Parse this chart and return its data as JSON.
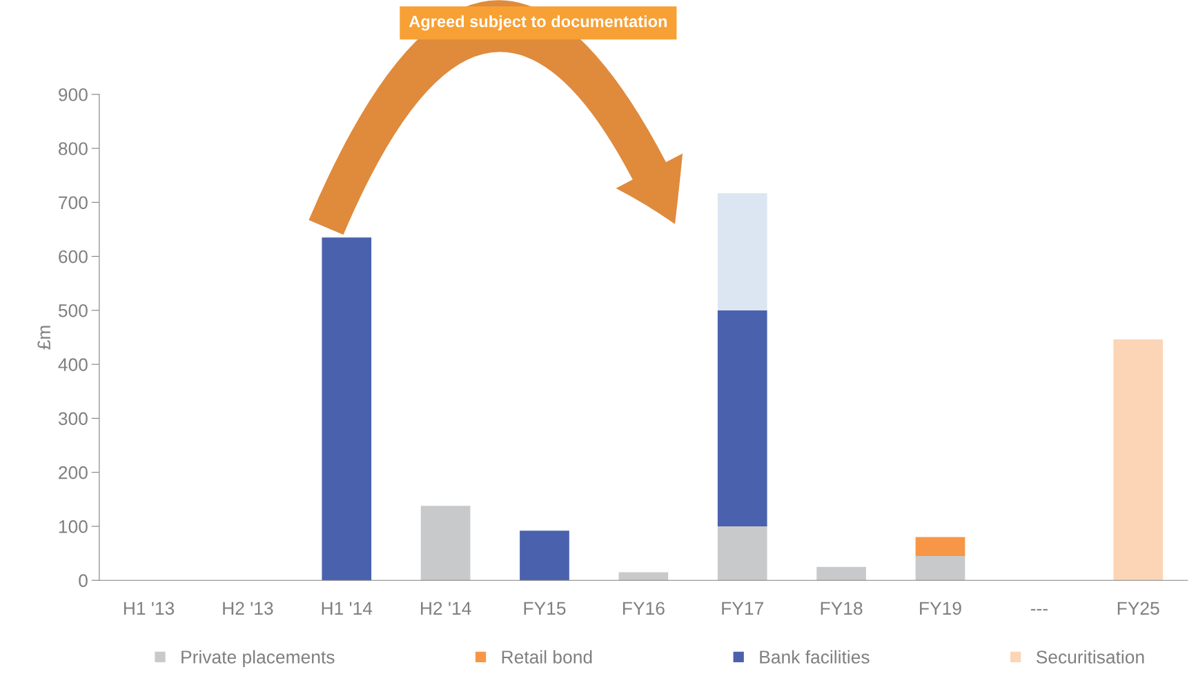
{
  "chart_data": {
    "type": "bar",
    "stacked": true,
    "ylabel": "£m",
    "categories": [
      "H1 '13",
      "H2 '13",
      "H1 '14",
      "H2 '14",
      "FY15",
      "FY16",
      "FY17",
      "FY18",
      "FY19",
      "---",
      "FY25"
    ],
    "series": [
      {
        "name": "Private placements",
        "color": "#c8c9cb",
        "values": [
          0,
          0,
          0,
          138,
          0,
          15,
          100,
          25,
          45,
          0,
          0
        ]
      },
      {
        "name": "Retail bond",
        "color": "#f79646",
        "values": [
          0,
          0,
          0,
          0,
          0,
          0,
          0,
          0,
          35,
          0,
          0
        ]
      },
      {
        "name": "Bank facilities",
        "color": "#4a61ad",
        "values": [
          0,
          0,
          635,
          0,
          92,
          0,
          400,
          0,
          0,
          0,
          0
        ]
      },
      {
        "color": "#dce6f2",
        "values": [
          0,
          0,
          0,
          0,
          0,
          0,
          217,
          0,
          0,
          0,
          0
        ]
      },
      {
        "name": "Securitisation",
        "color": "#fbd5b5",
        "values": [
          0,
          0,
          0,
          0,
          0,
          0,
          0,
          0,
          0,
          0,
          446
        ]
      }
    ],
    "ylim": [
      0,
      900
    ],
    "yticks": [
      0,
      100,
      200,
      300,
      400,
      500,
      600,
      700,
      800,
      900
    ],
    "legend": "bottom",
    "annotations": [
      "Agreed subject to documentation"
    ]
  }
}
